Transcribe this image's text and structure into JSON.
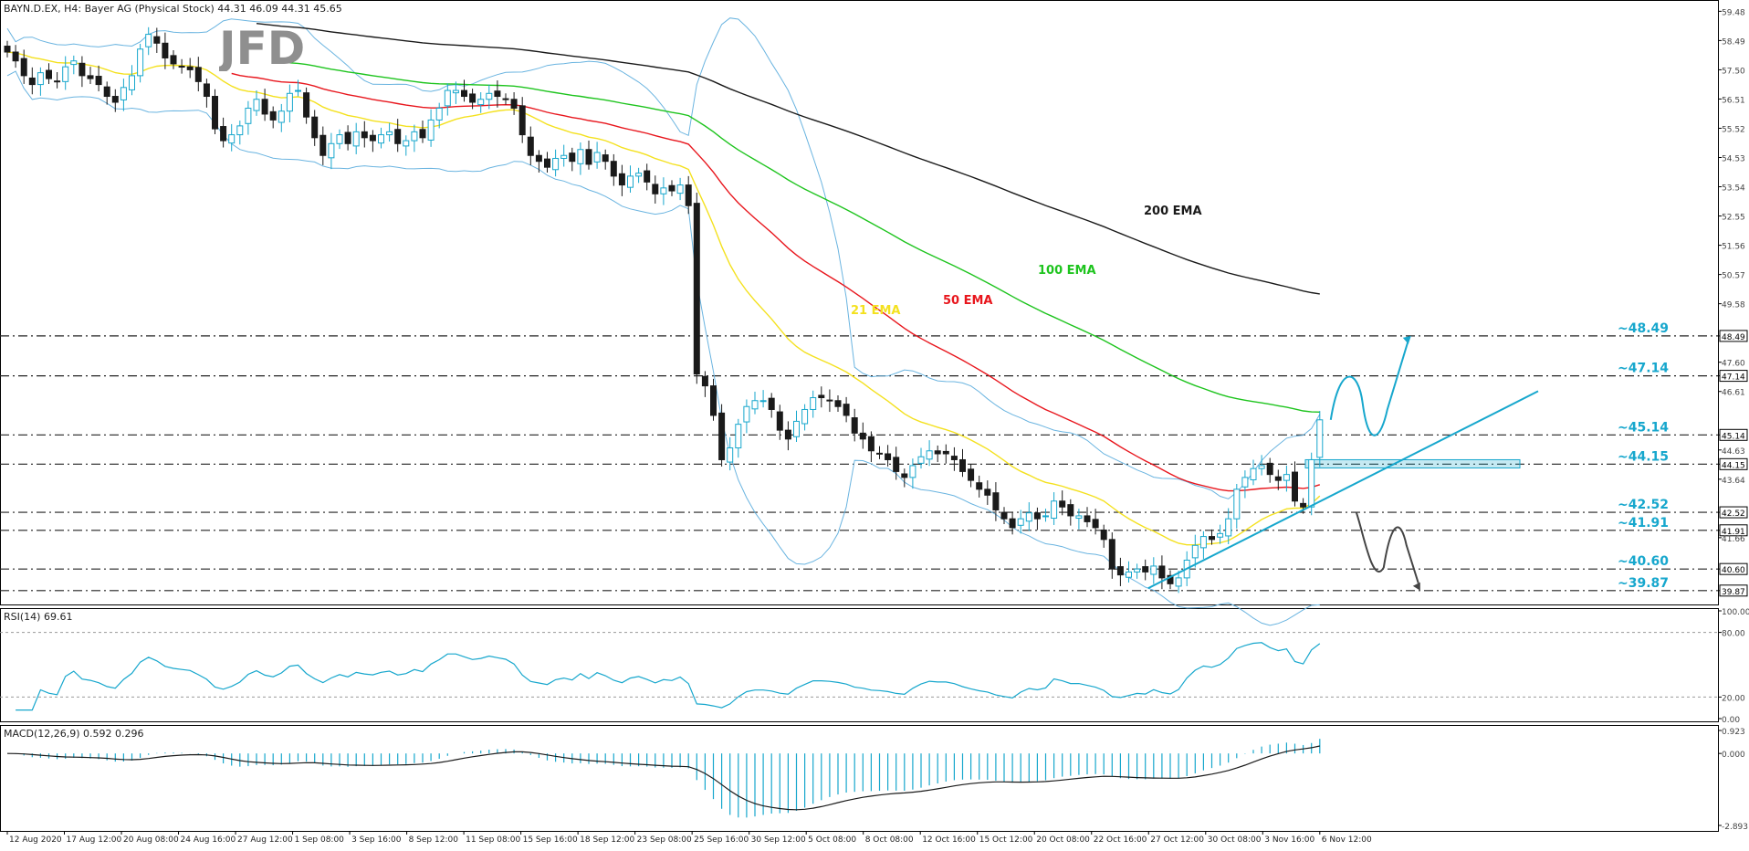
{
  "header": {
    "symbol_line": "BAYN.D.EX, H4: Bayer AG (Physical Stock)",
    "ohlc": "44.31 46.09 44.31 45.65",
    "logo_text": "JFD"
  },
  "colors": {
    "ema21": "#f4e11f",
    "ema50": "#e8161d",
    "ema100": "#1ec41e",
    "ema200": "#1a1a1a",
    "bollinger": "#6ab4e0",
    "accent": "#17a7cd",
    "bear_candle": "#1a1a1a",
    "bull_candle_border": "#17a7cd",
    "dash_line": "#222222",
    "rsi": "#17a7cd",
    "macd_hist": "#17a7cd",
    "macd_signal": "#1a1a1a",
    "down_arrow": "#444444"
  },
  "indicators": {
    "rsi_label": "RSI(14) 69.61",
    "macd_label": "MACD(12,26,9) 0.592 0.296"
  },
  "chart_data": [
    {
      "type": "candlestick",
      "title": "",
      "ylim": [
        39.4,
        59.8
      ],
      "price_ticks": [
        "59.48",
        "58.49",
        "57.50",
        "56.51",
        "55.52",
        "54.53",
        "53.54",
        "52.55",
        "51.56",
        "50.57",
        "49.58",
        "48.49",
        "47.60",
        "47.14",
        "46.61",
        "45.14",
        "44.63",
        "44.15",
        "43.64",
        "42.52",
        "41.91",
        "41.66",
        "40.60",
        "39.87"
      ],
      "highlighted_price_tags": [
        "48.49",
        "47.14",
        "45.14",
        "44.15",
        "42.52",
        "41.91",
        "40.60",
        "39.87"
      ],
      "x_tick_labels": [
        "12 Aug 2020",
        "17 Aug 12:00",
        "20 Aug 08:00",
        "24 Aug 16:00",
        "27 Aug 12:00",
        "1 Sep 08:00",
        "3 Sep 16:00",
        "8 Sep 12:00",
        "11 Sep 08:00",
        "15 Sep 16:00",
        "18 Sep 12:00",
        "23 Sep 08:00",
        "25 Sep 16:00",
        "30 Sep 12:00",
        "5 Oct 08:00",
        "8 Oct 08:00",
        "12 Oct 16:00",
        "15 Oct 12:00",
        "20 Oct 08:00",
        "22 Oct 16:00",
        "27 Oct 12:00",
        "30 Oct 08:00",
        "3 Nov 16:00",
        "6 Nov 12:00"
      ],
      "levels": [
        {
          "value": 48.49,
          "label": "~48.49"
        },
        {
          "value": 47.14,
          "label": "~47.14"
        },
        {
          "value": 45.14,
          "label": "~45.14"
        },
        {
          "value": 44.15,
          "label": "~44.15"
        },
        {
          "value": 42.52,
          "label": "~42.52"
        },
        {
          "value": 41.91,
          "label": "~41.91"
        },
        {
          "value": 40.6,
          "label": "~40.60"
        },
        {
          "value": 39.87,
          "label": "~39.87"
        }
      ],
      "series_labels": {
        "ema21": "21 EMA",
        "ema50": "50 EMA",
        "ema100": "100 EMA",
        "ema200": "200 EMA"
      },
      "closes": [
        58.1,
        57.8,
        57.3,
        57.0,
        57.4,
        57.2,
        57.1,
        57.6,
        57.8,
        57.3,
        57.2,
        57.0,
        56.6,
        56.4,
        56.9,
        57.3,
        58.2,
        58.7,
        58.4,
        57.9,
        57.7,
        57.6,
        57.5,
        57.1,
        56.6,
        55.5,
        55.1,
        55.3,
        55.6,
        56.2,
        56.5,
        56.0,
        55.8,
        56.1,
        56.7,
        56.8,
        55.9,
        55.2,
        54.6,
        55.0,
        55.3,
        55.0,
        55.4,
        55.2,
        55.1,
        55.3,
        55.4,
        55.0,
        55.1,
        55.4,
        55.2,
        55.8,
        56.2,
        56.8,
        56.8,
        56.6,
        56.4,
        56.5,
        56.7,
        56.6,
        56.5,
        56.2,
        55.3,
        54.6,
        54.4,
        54.2,
        54.5,
        54.6,
        54.4,
        54.8,
        54.3,
        54.7,
        54.4,
        53.9,
        53.6,
        53.9,
        54.0,
        53.7,
        53.3,
        53.5,
        53.4,
        53.6,
        52.9,
        47.2,
        46.8,
        45.8,
        44.3,
        44.7,
        45.5,
        46.1,
        46.3,
        46.3,
        46.0,
        45.3,
        45.0,
        45.6,
        46.0,
        46.4,
        46.4,
        46.3,
        46.1,
        45.8,
        45.2,
        45.0,
        44.6,
        44.5,
        44.3,
        43.9,
        43.7,
        44.1,
        44.4,
        44.6,
        44.5,
        44.5,
        44.3,
        43.9,
        43.6,
        43.3,
        43.1,
        42.6,
        42.3,
        42.0,
        42.3,
        42.5,
        42.3,
        42.4,
        42.9,
        42.7,
        42.4,
        42.4,
        42.2,
        42.0,
        41.6,
        40.6,
        40.4,
        40.5,
        40.6,
        40.5,
        40.7,
        40.3,
        40.1,
        40.3,
        40.9,
        41.4,
        41.7,
        41.6,
        41.8,
        42.3,
        43.3,
        43.7,
        44.0,
        44.1,
        43.8,
        43.6,
        43.8,
        42.9,
        42.7,
        44.3,
        45.65
      ],
      "projection_up": {
        "from": 45.65,
        "peak_1": 47.1,
        "trough": 45.2,
        "target": 48.49
      },
      "projection_down": {
        "from": 42.52,
        "trough": 40.6,
        "bounce": 41.91,
        "target": 39.87
      }
    },
    {
      "type": "line",
      "title": "RSI(14) 69.61",
      "ylim": [
        0,
        100
      ],
      "y_ticks": [
        "100.00",
        "80.00",
        "20.00",
        "0.00"
      ],
      "levels": [
        80,
        20
      ],
      "last_value": 69.61
    },
    {
      "type": "bar",
      "title": "MACD(12,26,9) 0.592 0.296",
      "y_ticks": [
        "0.923",
        "0.000",
        "-2.893"
      ],
      "ylim": [
        -2.893,
        0.923
      ],
      "macd_value": 0.592,
      "signal_value": 0.296
    }
  ]
}
